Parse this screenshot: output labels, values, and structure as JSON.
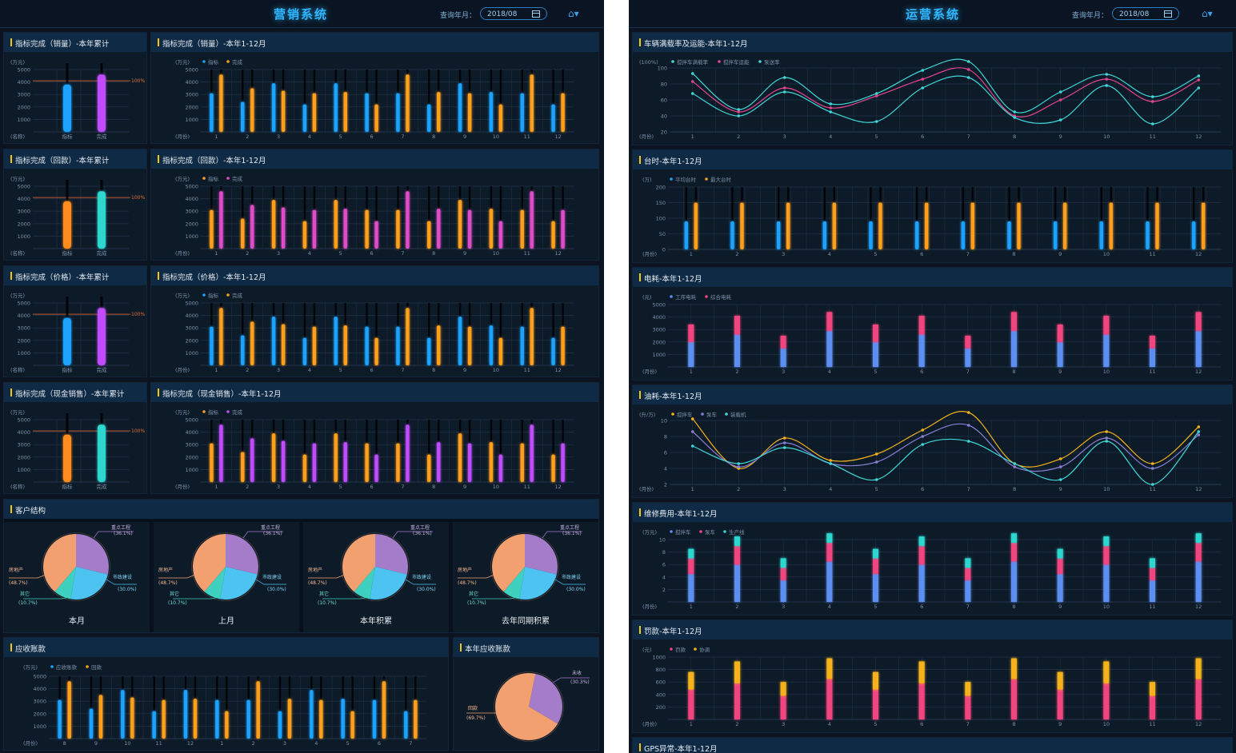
{
  "left": {
    "title": "营销系统",
    "query_label": "查询年月：",
    "date": "2018/08",
    "home_icon": "home-icon",
    "unit_wanyuan": "(万元)",
    "unit_name": "(名称)",
    "unit_month": "(月份)",
    "pct_label": "100%",
    "panels": [
      {
        "cum_title": "指标完成（销量）-本年累计",
        "mon_title": "指标完成（销量）-本年1-12月",
        "legend": [
          "指标",
          "完成"
        ],
        "bar_labels": [
          "指标",
          "完成"
        ]
      },
      {
        "cum_title": "指标完成（回款）-本年累计",
        "mon_title": "指标完成（回款）-本年1-12月",
        "legend": [
          "指标",
          "完成"
        ],
        "bar_labels": [
          "指标",
          "完成"
        ]
      },
      {
        "cum_title": "指标完成（价格）-本年累计",
        "mon_title": "指标完成（价格）-本年1-12月",
        "legend": [
          "指标",
          "完成"
        ],
        "bar_labels": [
          "指标",
          "完成"
        ]
      },
      {
        "cum_title": "指标完成（现金销售）-本年累计",
        "mon_title": "指标完成（现金销售）-本年1-12月",
        "legend": [
          "指标",
          "完成"
        ],
        "bar_labels": [
          "指标",
          "完成"
        ]
      }
    ],
    "customer_title": "客户结构",
    "pies": [
      {
        "caption": "本月"
      },
      {
        "caption": "上月"
      },
      {
        "caption": "本年积累"
      },
      {
        "caption": "去年同期积累"
      }
    ],
    "pie_labels": [
      {
        "name": "重点工程",
        "pct": "(36.1%)"
      },
      {
        "name": "市政建设",
        "pct": "(30.0%)"
      },
      {
        "name": "其它",
        "pct": "(10.7%)"
      },
      {
        "name": "房地产",
        "pct": "(48.7%)"
      }
    ],
    "receivable_title": "应收账款",
    "receivable_legend": [
      "应收账款",
      "回款"
    ],
    "receivable_months": [
      "8",
      "9",
      "10",
      "11",
      "12",
      "1",
      "2",
      "3",
      "4",
      "5",
      "6",
      "7"
    ],
    "yearly_title": "本年应收账款",
    "yearly_labels": [
      {
        "name": "未收",
        "pct": "(30.3%)"
      },
      {
        "name": "回款",
        "pct": "(69.7%)"
      }
    ]
  },
  "right": {
    "title": "运营系统",
    "query_label": "查询年月：",
    "date": "2018/08",
    "home_icon": "home-icon",
    "unit_month": "(月份)",
    "panels": {
      "load": {
        "title": "车辆满载率及运能-本年1-12月",
        "unit": "(100%)",
        "legend": [
          "搅拌车满载率",
          "搅拌车运能",
          "泵送率"
        ]
      },
      "hours": {
        "title": "台时-本年1-12月",
        "unit": "(万)",
        "legend": [
          "平均台时",
          "最大台时"
        ]
      },
      "power": {
        "title": "电耗-本年1-12月",
        "unit": "(元)",
        "legend": [
          "工序电耗",
          "综合电耗"
        ]
      },
      "oil": {
        "title": "油耗-本年1-12月",
        "unit": "(升/万)",
        "legend": [
          "搅拌车",
          "泵车",
          "装载机"
        ]
      },
      "repair": {
        "title": "维修费用-本年1-12月",
        "unit": "(万元)",
        "legend": [
          "搅拌车",
          "泵车",
          "生产线"
        ]
      },
      "fine": {
        "title": "罚款-本年1-12月",
        "unit": "(元)",
        "legend": [
          "罚款",
          "协调"
        ]
      },
      "gps": {
        "title": "GPS异常-本年1-12月"
      }
    }
  },
  "chart_data": [
    {
      "id": "L-cum-1",
      "type": "bar",
      "title": "指标完成（销量）-本年累计",
      "categories": [
        "指标",
        "完成"
      ],
      "values": [
        3800,
        4600
      ],
      "ylim": [
        0,
        5000
      ],
      "yticks": [
        1000,
        2000,
        3000,
        4000,
        5000
      ],
      "target": 4100,
      "colors": [
        "#1aa3ff",
        "#c04cff"
      ]
    },
    {
      "id": "L-mon-1",
      "type": "bar",
      "title": "指标完成（销量）-本年1-12月",
      "categories": [
        "1",
        "2",
        "3",
        "4",
        "5",
        "6",
        "7",
        "8",
        "9",
        "10",
        "11",
        "12"
      ],
      "ylim": [
        0,
        5000
      ],
      "yticks": [
        1000,
        2000,
        3000,
        4000,
        5000
      ],
      "series": [
        {
          "name": "指标",
          "values": [
            3100,
            2400,
            3900,
            2200,
            3900,
            3100,
            3100,
            2200,
            3900,
            3200,
            3100,
            2200
          ]
        },
        {
          "name": "完成",
          "values": [
            4600,
            3500,
            3300,
            3100,
            3200,
            2200,
            4600,
            3200,
            3100,
            2200,
            4600,
            3100
          ]
        }
      ],
      "colors": [
        "#1aa3ff",
        "#ff9f1a"
      ]
    },
    {
      "id": "L-cum-2",
      "type": "bar",
      "title": "指标完成（回款）-本年累计",
      "categories": [
        "指标",
        "完成"
      ],
      "values": [
        3800,
        4600
      ],
      "ylim": [
        0,
        5000
      ],
      "yticks": [
        1000,
        2000,
        3000,
        4000,
        5000
      ],
      "target": 4100,
      "colors": [
        "#ff8c1a",
        "#2ed6d0"
      ]
    },
    {
      "id": "L-mon-2",
      "type": "bar",
      "title": "指标完成（回款）-本年1-12月",
      "categories": [
        "1",
        "2",
        "3",
        "4",
        "5",
        "6",
        "7",
        "8",
        "9",
        "10",
        "11",
        "12"
      ],
      "ylim": [
        0,
        5000
      ],
      "yticks": [
        1000,
        2000,
        3000,
        4000,
        5000
      ],
      "series": [
        {
          "name": "指标",
          "values": [
            3100,
            2400,
            3900,
            2200,
            3900,
            3100,
            3100,
            2200,
            3900,
            3200,
            3100,
            2200
          ]
        },
        {
          "name": "完成",
          "values": [
            4600,
            3500,
            3300,
            3100,
            3200,
            2200,
            4600,
            3200,
            3100,
            2200,
            4600,
            3100
          ]
        }
      ],
      "colors": [
        "#ff9f1a",
        "#e04cc9"
      ]
    },
    {
      "id": "L-cum-3",
      "type": "bar",
      "title": "指标完成（价格）-本年累计",
      "categories": [
        "指标",
        "完成"
      ],
      "values": [
        3800,
        4600
      ],
      "ylim": [
        0,
        5000
      ],
      "yticks": [
        1000,
        2000,
        3000,
        4000,
        5000
      ],
      "target": 4100,
      "colors": [
        "#1aa3ff",
        "#c04cff"
      ]
    },
    {
      "id": "L-mon-3",
      "type": "bar",
      "title": "指标完成（价格）-本年1-12月",
      "categories": [
        "1",
        "2",
        "3",
        "4",
        "5",
        "6",
        "7",
        "8",
        "9",
        "10",
        "11",
        "12"
      ],
      "ylim": [
        0,
        5000
      ],
      "yticks": [
        1000,
        2000,
        3000,
        4000,
        5000
      ],
      "series": [
        {
          "name": "指标",
          "values": [
            3100,
            2400,
            3900,
            2200,
            3900,
            3100,
            3100,
            2200,
            3900,
            3200,
            3100,
            2200
          ]
        },
        {
          "name": "完成",
          "values": [
            4600,
            3500,
            3300,
            3100,
            3200,
            2200,
            4600,
            3200,
            3100,
            2200,
            4600,
            3100
          ]
        }
      ],
      "colors": [
        "#1aa3ff",
        "#ff9f1a"
      ]
    },
    {
      "id": "L-cum-4",
      "type": "bar",
      "title": "指标完成（现金销售）-本年累计",
      "categories": [
        "指标",
        "完成"
      ],
      "values": [
        3800,
        4600
      ],
      "ylim": [
        0,
        5000
      ],
      "yticks": [
        1000,
        2000,
        3000,
        4000,
        5000
      ],
      "target": 4100,
      "colors": [
        "#ff8c1a",
        "#2ed6d0"
      ]
    },
    {
      "id": "L-mon-4",
      "type": "bar",
      "title": "指标完成（现金销售）-本年1-12月",
      "categories": [
        "1",
        "2",
        "3",
        "4",
        "5",
        "6",
        "7",
        "8",
        "9",
        "10",
        "11",
        "12"
      ],
      "ylim": [
        0,
        5000
      ],
      "yticks": [
        1000,
        2000,
        3000,
        4000,
        5000
      ],
      "series": [
        {
          "name": "指标",
          "values": [
            3100,
            2400,
            3900,
            2200,
            3900,
            3100,
            3100,
            2200,
            3900,
            3200,
            3100,
            2200
          ]
        },
        {
          "name": "完成",
          "values": [
            4600,
            3500,
            3300,
            3100,
            3200,
            2200,
            4600,
            3200,
            3100,
            2200,
            4600,
            3100
          ]
        }
      ],
      "colors": [
        "#ff9f1a",
        "#c04cff"
      ]
    },
    {
      "id": "L-pie",
      "type": "pie",
      "title": "客户结构",
      "labels": [
        "重点工程",
        "市政建设",
        "其它",
        "房地产"
      ],
      "values": [
        36.1,
        30.0,
        10.7,
        48.7
      ],
      "colors": [
        "#a57cc9",
        "#4cc3f0",
        "#3ed1c0",
        "#f2a06f"
      ]
    },
    {
      "id": "L-recv",
      "type": "bar",
      "title": "应收账款",
      "categories": [
        "8",
        "9",
        "10",
        "11",
        "12",
        "1",
        "2",
        "3",
        "4",
        "5",
        "6",
        "7"
      ],
      "ylim": [
        0,
        5000
      ],
      "yticks": [
        1000,
        2000,
        3000,
        4000,
        5000
      ],
      "series": [
        {
          "name": "应收账款",
          "values": [
            3100,
            2400,
            3900,
            2200,
            3900,
            3100,
            3100,
            2200,
            3900,
            3200,
            3100,
            2200
          ]
        },
        {
          "name": "回款",
          "values": [
            4600,
            3500,
            3300,
            3100,
            3200,
            2200,
            4600,
            3200,
            3100,
            2200,
            4600,
            3100
          ]
        }
      ],
      "colors": [
        "#1aa3ff",
        "#ff9f1a"
      ]
    },
    {
      "id": "L-recv-pie",
      "type": "pie",
      "title": "本年应收账款",
      "labels": [
        "未收",
        "回款"
      ],
      "values": [
        30.3,
        69.7
      ],
      "colors": [
        "#a57cc9",
        "#f2a06f"
      ]
    },
    {
      "id": "R-load",
      "type": "line",
      "title": "车辆满载率及运能-本年1-12月",
      "x": [
        "1",
        "2",
        "3",
        "4",
        "5",
        "6",
        "7",
        "8",
        "9",
        "10",
        "11",
        "12"
      ],
      "ylim": [
        20,
        100
      ],
      "yticks": [
        20,
        40,
        60,
        80,
        100
      ],
      "series": [
        {
          "name": "搅拌车满载率",
          "values": [
            93,
            48,
            88,
            55,
            68,
            97,
            108,
            45,
            70,
            92,
            64,
            90
          ]
        },
        {
          "name": "搅拌车运能",
          "values": [
            83,
            45,
            75,
            50,
            65,
            86,
            98,
            40,
            60,
            86,
            58,
            85
          ]
        },
        {
          "name": "泵送率",
          "values": [
            68,
            40,
            70,
            45,
            33,
            75,
            88,
            38,
            35,
            78,
            30,
            75
          ]
        }
      ],
      "colors": [
        "#3fd7d7",
        "#e2468f",
        "#3fd7d7"
      ]
    },
    {
      "id": "R-hours",
      "type": "bar",
      "title": "台时-本年1-12月",
      "categories": [
        "1",
        "2",
        "3",
        "4",
        "5",
        "6",
        "7",
        "8",
        "9",
        "10",
        "11",
        "12"
      ],
      "ylim": [
        0,
        200
      ],
      "yticks": [
        0,
        50,
        100,
        150,
        200
      ],
      "series": [
        {
          "name": "平均台时",
          "values": [
            90,
            90,
            90,
            90,
            90,
            90,
            90,
            90,
            90,
            90,
            90,
            90
          ]
        },
        {
          "name": "最大台时",
          "values": [
            150,
            150,
            150,
            150,
            150,
            150,
            150,
            150,
            150,
            150,
            150,
            150
          ]
        }
      ],
      "colors": [
        "#1aa3ff",
        "#ff9f1a"
      ]
    },
    {
      "id": "R-power",
      "type": "bar",
      "title": "电耗-本年1-12月",
      "categories": [
        "1",
        "2",
        "3",
        "4",
        "5",
        "6",
        "7",
        "8",
        "9",
        "10",
        "11",
        "12"
      ],
      "ylim": [
        0,
        5000
      ],
      "yticks": [
        1000,
        2000,
        3000,
        4000,
        5000
      ],
      "stacked": true,
      "series": [
        {
          "name": "工序电耗",
          "values": [
            2000,
            2600,
            1500,
            2900,
            2000,
            2600,
            1500,
            2900,
            2000,
            2600,
            1500,
            2900
          ]
        },
        {
          "name": "综合电耗",
          "values": [
            1400,
            1500,
            1000,
            1500,
            1400,
            1500,
            1000,
            1500,
            1400,
            1500,
            1000,
            1500
          ]
        }
      ],
      "colors": [
        "#5b8ff0",
        "#f0447e"
      ]
    },
    {
      "id": "R-oil",
      "type": "line",
      "title": "油耗-本年1-12月",
      "x": [
        "1",
        "2",
        "3",
        "4",
        "5",
        "6",
        "7",
        "8",
        "9",
        "10",
        "11",
        "12"
      ],
      "ylim": [
        2,
        10
      ],
      "yticks": [
        2,
        4,
        6,
        8,
        10
      ],
      "series": [
        {
          "name": "搅拌车",
          "values": [
            10.2,
            4.0,
            7.8,
            5.0,
            5.8,
            8.8,
            11.0,
            4.6,
            5.2,
            8.6,
            4.6,
            9.2
          ]
        },
        {
          "name": "泵车",
          "values": [
            8.6,
            4.2,
            7.2,
            4.6,
            4.8,
            8.0,
            9.4,
            4.2,
            4.2,
            7.8,
            4.0,
            8.2
          ]
        },
        {
          "name": "装载机",
          "values": [
            6.8,
            4.6,
            6.6,
            4.6,
            2.6,
            7.0,
            7.4,
            4.6,
            2.6,
            7.4,
            2.0,
            8.6
          ]
        }
      ],
      "colors": [
        "#f5b21c",
        "#8a7fd6",
        "#3fd7d7"
      ]
    },
    {
      "id": "R-repair",
      "type": "bar",
      "title": "维修费用-本年1-12月",
      "categories": [
        "1",
        "2",
        "3",
        "4",
        "5",
        "6",
        "7",
        "8",
        "9",
        "10",
        "11",
        "12"
      ],
      "ylim": [
        0,
        10
      ],
      "yticks": [
        2,
        4,
        6,
        8,
        10
      ],
      "stacked": true,
      "series": [
        {
          "name": "搅拌车",
          "values": [
            4.5,
            6.0,
            3.5,
            6.5,
            4.5,
            6.0,
            3.5,
            6.5,
            4.5,
            6.0,
            3.5,
            6.5
          ]
        },
        {
          "name": "泵车",
          "values": [
            2.5,
            3.0,
            2.0,
            3.0,
            2.5,
            3.0,
            2.0,
            3.0,
            2.5,
            3.0,
            2.0,
            3.0
          ]
        },
        {
          "name": "生产线",
          "values": [
            1.5,
            1.5,
            1.5,
            1.5,
            1.5,
            1.5,
            1.5,
            1.5,
            1.5,
            1.5,
            1.5,
            1.5
          ]
        }
      ],
      "colors": [
        "#5b8ff0",
        "#f0447e",
        "#2ed6d0"
      ]
    },
    {
      "id": "R-fine",
      "type": "bar",
      "title": "罚款-本年1-12月",
      "categories": [
        "1",
        "2",
        "3",
        "4",
        "5",
        "6",
        "7",
        "8",
        "9",
        "10",
        "11",
        "12"
      ],
      "ylim": [
        0,
        1000
      ],
      "yticks": [
        200,
        400,
        600,
        800,
        1000
      ],
      "stacked": true,
      "series": [
        {
          "name": "罚款",
          "values": [
            480,
            580,
            380,
            650,
            480,
            580,
            380,
            650,
            480,
            580,
            380,
            650
          ]
        },
        {
          "name": "协调",
          "values": [
            280,
            350,
            220,
            330,
            280,
            350,
            220,
            330,
            280,
            350,
            220,
            330
          ]
        }
      ],
      "colors": [
        "#f0447e",
        "#f5b21c"
      ]
    }
  ]
}
